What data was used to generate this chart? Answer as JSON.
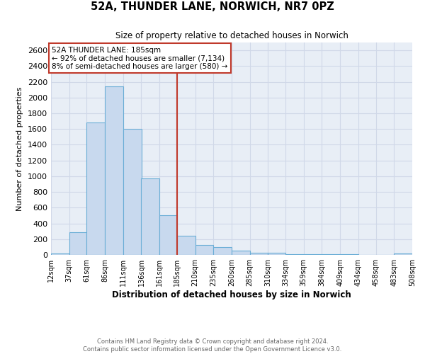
{
  "title": "52A, THUNDER LANE, NORWICH, NR7 0PZ",
  "subtitle": "Size of property relative to detached houses in Norwich",
  "xlabel": "Distribution of detached houses by size in Norwich",
  "ylabel": "Number of detached properties",
  "footer_line1": "Contains HM Land Registry data © Crown copyright and database right 2024.",
  "footer_line2": "Contains public sector information licensed under the Open Government Licence v3.0.",
  "annotation_line1": "52A THUNDER LANE: 185sqm",
  "annotation_line2": "← 92% of detached houses are smaller (7,134)",
  "annotation_line3": "8% of semi-detached houses are larger (580) →",
  "property_size": 185,
  "bin_edges": [
    12,
    37,
    61,
    86,
    111,
    136,
    161,
    185,
    210,
    235,
    260,
    285,
    310,
    334,
    359,
    384,
    409,
    434,
    458,
    483,
    508
  ],
  "bin_labels": [
    "12sqm",
    "37sqm",
    "61sqm",
    "86sqm",
    "111sqm",
    "136sqm",
    "161sqm",
    "185sqm",
    "210sqm",
    "235sqm",
    "260sqm",
    "285sqm",
    "310sqm",
    "334sqm",
    "359sqm",
    "384sqm",
    "409sqm",
    "434sqm",
    "458sqm",
    "483sqm",
    "508sqm"
  ],
  "counts": [
    20,
    290,
    1680,
    2140,
    1600,
    970,
    500,
    245,
    130,
    100,
    50,
    30,
    25,
    10,
    8,
    5,
    5,
    3,
    2,
    20,
    0
  ],
  "bar_color": "#c8d9ee",
  "bar_edge_color": "#6baed6",
  "vline_color": "#c0392b",
  "annotation_box_color": "#c0392b",
  "grid_color": "#d0d8e8",
  "background_color": "#e8eef6",
  "ylim": [
    0,
    2700
  ],
  "yticks": [
    0,
    200,
    400,
    600,
    800,
    1000,
    1200,
    1400,
    1600,
    1800,
    2000,
    2200,
    2400,
    2600
  ]
}
